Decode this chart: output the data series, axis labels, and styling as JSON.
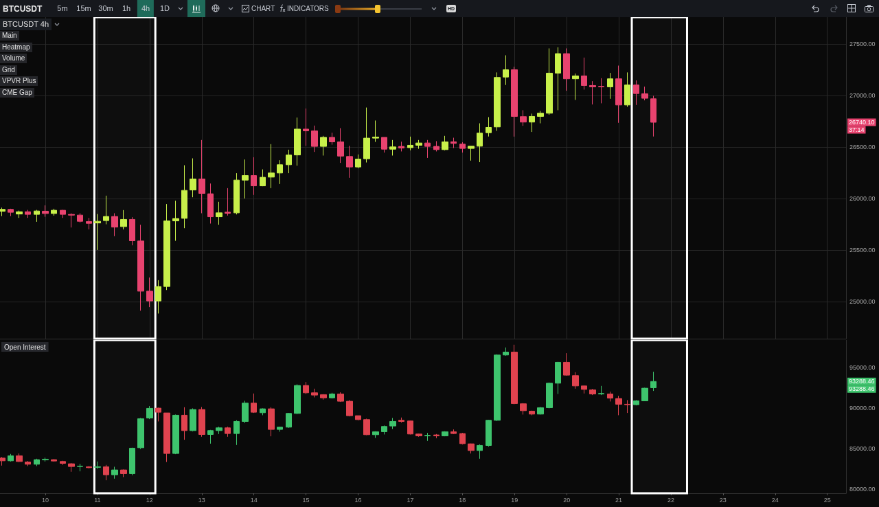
{
  "chart_data": [
    {
      "type": "candlestick",
      "title": "BTCUSDT",
      "subtitle": "BTCUSDT 4h",
      "x": [
        9.1667,
        9.3333,
        9.5,
        9.6667,
        9.8333,
        10,
        10.1667,
        10.3333,
        10.5,
        10.6667,
        10.8333,
        11,
        11.1667,
        11.3333,
        11.5,
        11.6667,
        11.8333,
        12,
        12.1667,
        12.3333,
        12.5,
        12.6667,
        12.8333,
        13,
        13.1667,
        13.3333,
        13.5,
        13.6667,
        13.8333,
        14,
        14.1667,
        14.3333,
        14.5,
        14.6667,
        14.8333,
        15,
        15.1667,
        15.3333,
        15.5,
        15.6667,
        15.8333,
        16,
        16.1667,
        16.3333,
        16.5,
        16.6667,
        16.8333,
        17,
        17.1667,
        17.3333,
        17.5,
        17.6667,
        17.8333,
        18,
        18.1667,
        18.3333,
        18.5,
        18.6667,
        18.8333,
        19,
        19.1667,
        19.3333,
        19.5,
        19.6667,
        19.8333,
        20,
        20.1667,
        20.3333,
        20.5,
        20.6667,
        20.8333,
        21,
        21.1667,
        21.3333,
        21.5,
        21.6667
      ],
      "ohlc": [
        [
          25877,
          25912,
          25830,
          25895
        ],
        [
          25895,
          25901,
          25830,
          25866
        ],
        [
          25850,
          25883,
          25812,
          25872
        ],
        [
          25872,
          25890,
          25812,
          25846
        ],
        [
          25846,
          25890,
          25774,
          25879
        ],
        [
          25877,
          25934,
          25823,
          25855
        ],
        [
          25855,
          25901,
          25834,
          25886
        ],
        [
          25886,
          25890,
          25812,
          25846
        ],
        [
          25846,
          25857,
          25719,
          25839
        ],
        [
          25839,
          25857,
          25768,
          25779
        ],
        [
          25777,
          25812,
          25701,
          25759
        ],
        [
          25763,
          25850,
          25501,
          25779
        ],
        [
          25786,
          26028,
          25750,
          25826
        ],
        [
          25826,
          25857,
          25635,
          25723
        ],
        [
          25728,
          25888,
          25701,
          25797
        ],
        [
          25797,
          25819,
          25546,
          25590
        ],
        [
          25588,
          25746,
          24912,
          25101
        ],
        [
          25101,
          25234,
          24946,
          25006
        ],
        [
          25006,
          25208,
          24884,
          25146
        ],
        [
          25146,
          25946,
          25112,
          25783
        ],
        [
          25783,
          25979,
          25590,
          25806
        ],
        [
          25808,
          26323,
          25712,
          26079
        ],
        [
          26083,
          26390,
          26012,
          26190
        ],
        [
          26190,
          26568,
          25857,
          26050
        ],
        [
          26046,
          26146,
          25757,
          25823
        ],
        [
          25823,
          25968,
          25746,
          25861
        ],
        [
          25868,
          26101,
          25835,
          25857
        ],
        [
          25861,
          26246,
          25846,
          26179
        ],
        [
          26179,
          26379,
          26001,
          26223
        ],
        [
          26223,
          26401,
          26035,
          26123
        ],
        [
          26123,
          26283,
          26119,
          26206
        ],
        [
          26208,
          26528,
          26101,
          26248
        ],
        [
          26248,
          26372,
          26141,
          26328
        ],
        [
          26328,
          26474,
          26246,
          26423
        ],
        [
          26423,
          26786,
          26319,
          26674
        ],
        [
          26674,
          26874,
          26512,
          26657
        ],
        [
          26657,
          26708,
          26452,
          26506
        ],
        [
          26506,
          26608,
          26417,
          26594
        ],
        [
          26594,
          26639,
          26523,
          26550
        ],
        [
          26550,
          26683,
          26346,
          26412
        ],
        [
          26408,
          26512,
          26201,
          26306
        ],
        [
          26306,
          26428,
          26294,
          26383
        ],
        [
          26386,
          26883,
          26350,
          26586
        ],
        [
          26586,
          26757,
          26550,
          26597
        ],
        [
          26594,
          26594,
          26446,
          26479
        ],
        [
          26479,
          26568,
          26417,
          26501
        ],
        [
          26506,
          26552,
          26457,
          26490
        ],
        [
          26494,
          26601,
          26468,
          26517
        ],
        [
          26517,
          26568,
          26483,
          26539
        ],
        [
          26539,
          26568,
          26394,
          26506
        ],
        [
          26506,
          26557,
          26457,
          26475
        ],
        [
          26475,
          26608,
          26468,
          26550
        ],
        [
          26551,
          26590,
          26490,
          26535
        ],
        [
          26528,
          26546,
          26446,
          26486
        ],
        [
          26486,
          26508,
          26368,
          26508
        ],
        [
          26508,
          26730,
          26353,
          26635
        ],
        [
          26639,
          26790,
          26602,
          26690
        ],
        [
          26695,
          27224,
          26657,
          27175
        ],
        [
          27179,
          27390,
          27102,
          27250
        ],
        [
          27250,
          27279,
          26601,
          26797
        ],
        [
          26795,
          26857,
          26706,
          26742
        ],
        [
          26742,
          26824,
          26646,
          26797
        ],
        [
          26797,
          26850,
          26730,
          26828
        ],
        [
          26828,
          27457,
          26813,
          27217
        ],
        [
          27217,
          27468,
          26857,
          27406
        ],
        [
          27406,
          27457,
          27046,
          27162
        ],
        [
          27162,
          27213,
          26957,
          27190
        ],
        [
          27190,
          27368,
          27057,
          27097
        ],
        [
          27097,
          27139,
          26913,
          27084
        ],
        [
          27088,
          27168,
          26924,
          27084
        ],
        [
          27084,
          27219,
          26968,
          27162
        ],
        [
          27162,
          27290,
          26735,
          26908
        ],
        [
          26908,
          27224,
          26890,
          27102
        ],
        [
          27102,
          27146,
          26908,
          27019
        ],
        [
          27017,
          27086,
          26953,
          26973
        ],
        [
          26968,
          26997,
          26602,
          26740.1
        ]
      ],
      "colors": [
        "#c8f04a",
        "#e8436f",
        "#c8f04a",
        "#e8436f",
        "#c8f04a",
        "#e8436f",
        "#c8f04a",
        "#e8436f",
        "#e8436f",
        "#e8436f",
        "#e8436f",
        "#c8f04a",
        "#c8f04a",
        "#e8436f",
        "#c8f04a",
        "#e8436f",
        "#e8436f",
        "#e8436f",
        "#c8f04a",
        "#c8f04a",
        "#c8f04a",
        "#c8f04a",
        "#c8f04a",
        "#e8436f",
        "#e8436f",
        "#c8f04a",
        "#e8436f",
        "#c8f04a",
        "#c8f04a",
        "#e8436f",
        "#c8f04a",
        "#c8f04a",
        "#c8f04a",
        "#c8f04a",
        "#c8f04a",
        "#e8436f",
        "#e8436f",
        "#c8f04a",
        "#e8436f",
        "#e8436f",
        "#e8436f",
        "#c8f04a",
        "#c8f04a",
        "#c8f04a",
        "#e8436f",
        "#c8f04a",
        "#e8436f",
        "#c8f04a",
        "#c8f04a",
        "#e8436f",
        "#e8436f",
        "#c8f04a",
        "#e8436f",
        "#e8436f",
        "#c8f04a",
        "#c8f04a",
        "#c8f04a",
        "#c8f04a",
        "#c8f04a",
        "#e8436f",
        "#e8436f",
        "#c8f04a",
        "#c8f04a",
        "#c8f04a",
        "#c8f04a",
        "#e8436f",
        "#c8f04a",
        "#e8436f",
        "#e8436f",
        "#e8436f",
        "#c8f04a",
        "#e8436f",
        "#c8f04a",
        "#e8436f",
        "#e8436f",
        "#e8436f"
      ],
      "xlim": [
        9.13,
        25.36
      ],
      "xticks": [
        10,
        11,
        12,
        13,
        14,
        15,
        16,
        17,
        18,
        19,
        20,
        21,
        22,
        23,
        24,
        25
      ],
      "ylim": [
        24640,
        27760
      ],
      "yticks": [
        {
          "value": 25000,
          "label": "25000.00"
        },
        {
          "value": 25500,
          "label": "25500.00"
        },
        {
          "value": 26000,
          "label": "26000.00"
        },
        {
          "value": 26500,
          "label": "26500.00"
        },
        {
          "value": 27000,
          "label": "27000.00"
        },
        {
          "value": 27500,
          "label": "27500.00"
        }
      ],
      "grid": true,
      "tick_labels": "y",
      "bands": [
        {
          "axis": "x",
          "from": 10.94,
          "to": 12.11,
          "color": "#ffffff"
        },
        {
          "axis": "x",
          "from": 21.25,
          "to": 22.31,
          "color": "#ffffff"
        }
      ],
      "annotations": [
        "5m",
        "15m",
        "30m",
        "1h",
        "4h",
        "1D",
        "CHART",
        "INDICATORS",
        "HD",
        "Main",
        "Heatmap",
        "Volume",
        "Grid",
        "VPVR Plus",
        "CME Gap",
        "26740.10",
        "37:14"
      ]
    },
    {
      "type": "candlestick",
      "title": "Open Interest",
      "x": [
        9.1667,
        9.3333,
        9.5,
        9.6667,
        9.8333,
        10,
        10.1667,
        10.3333,
        10.5,
        10.6667,
        10.8333,
        11,
        11.1667,
        11.3333,
        11.5,
        11.6667,
        11.8333,
        12,
        12.1667,
        12.3333,
        12.5,
        12.6667,
        12.8333,
        13,
        13.1667,
        13.3333,
        13.5,
        13.6667,
        13.8333,
        14,
        14.1667,
        14.3333,
        14.5,
        14.6667,
        14.8333,
        15,
        15.1667,
        15.3333,
        15.5,
        15.6667,
        15.8333,
        16,
        16.1667,
        16.3333,
        16.5,
        16.6667,
        16.8333,
        17,
        17.1667,
        17.3333,
        17.5,
        17.6667,
        17.8333,
        18,
        18.1667,
        18.3333,
        18.5,
        18.6667,
        18.8333,
        19,
        19.1667,
        19.3333,
        19.5,
        19.6667,
        19.8333,
        20,
        20.1667,
        20.3333,
        20.5,
        20.6667,
        20.8333,
        21,
        21.1667,
        21.3333,
        21.5,
        21.6667
      ],
      "ohlc": [
        [
          83842,
          83983,
          82910,
          83503
        ],
        [
          83503,
          84350,
          83418,
          84125
        ],
        [
          84125,
          84407,
          83362,
          83418
        ],
        [
          83362,
          83475,
          82853,
          83080
        ],
        [
          83080,
          83757,
          82853,
          83644
        ],
        [
          83640,
          83898,
          83418,
          83700
        ],
        [
          83644,
          83700,
          83418,
          83475
        ],
        [
          83418,
          83503,
          82995,
          83193
        ],
        [
          83136,
          83221,
          82147,
          82797
        ],
        [
          82800,
          83136,
          82203,
          82853
        ],
        [
          82769,
          82853,
          82571,
          82656
        ],
        [
          82700,
          83419,
          82515,
          82770
        ],
        [
          82769,
          82995,
          81102,
          81780
        ],
        [
          81780,
          82769,
          81300,
          82373
        ],
        [
          82373,
          82430,
          81498,
          81921
        ],
        [
          81921,
          85113,
          81723,
          85057
        ],
        [
          85113,
          88785,
          84972,
          88701
        ],
        [
          88785,
          90255,
          88645,
          89973
        ],
        [
          90001,
          90057,
          88362,
          89492
        ],
        [
          89407,
          89407,
          83362,
          84407
        ],
        [
          84407,
          89209,
          84322,
          89125
        ],
        [
          89125,
          90114,
          86102,
          87232
        ],
        [
          87232,
          89973,
          87147,
          89831
        ],
        [
          89831,
          90142,
          86469,
          86752
        ],
        [
          86752,
          87317,
          85622,
          87232
        ],
        [
          87232,
          87712,
          86808,
          87571
        ],
        [
          87571,
          87712,
          86469,
          86865
        ],
        [
          86865,
          88503,
          85452,
          88362
        ],
        [
          88362,
          90905,
          88164,
          90622
        ],
        [
          90622,
          91809,
          89407,
          89492
        ],
        [
          89436,
          89973,
          89125,
          89915
        ],
        [
          89915,
          90114,
          86526,
          87373
        ],
        [
          87373,
          87712,
          87091,
          87656
        ],
        [
          87656,
          89407,
          87571,
          89351
        ],
        [
          89351,
          92939,
          89266,
          92798
        ],
        [
          92798,
          93221,
          91752,
          91894
        ],
        [
          91894,
          92402,
          91328,
          91611
        ],
        [
          91668,
          91724,
          91046,
          91272
        ],
        [
          91272,
          91894,
          91187,
          91752
        ],
        [
          91752,
          91950,
          90764,
          90848
        ],
        [
          90848,
          90990,
          88983,
          89068
        ],
        [
          89068,
          89068,
          88503,
          88588
        ],
        [
          88588,
          88701,
          86667,
          86724
        ],
        [
          86724,
          87147,
          86328,
          87091
        ],
        [
          87091,
          87853,
          86752,
          87741
        ],
        [
          87797,
          88786,
          87430,
          88362
        ],
        [
          88503,
          88842,
          88221,
          88362
        ],
        [
          88418,
          88447,
          86752,
          86808
        ],
        [
          86808,
          86865,
          86469,
          86582
        ],
        [
          86582,
          86950,
          85961,
          86639
        ],
        [
          86695,
          86808,
          86300,
          86582
        ],
        [
          86582,
          87147,
          86526,
          87091
        ],
        [
          87091,
          87373,
          86808,
          86865
        ],
        [
          86865,
          86950,
          85537,
          85622
        ],
        [
          85594,
          85622,
          84407,
          84775
        ],
        [
          84775,
          85537,
          83757,
          85396
        ],
        [
          85396,
          88560,
          85255,
          88503
        ],
        [
          88503,
          96640,
          88419,
          96555
        ],
        [
          96555,
          97487,
          96470,
          96922
        ],
        [
          96922,
          97826,
          90481,
          90566
        ],
        [
          90538,
          90622,
          89209,
          89690
        ],
        [
          89633,
          89690,
          89125,
          89266
        ],
        [
          89266,
          90142,
          89209,
          90057
        ],
        [
          90057,
          93165,
          89972,
          93080
        ],
        [
          93080,
          95707,
          91752,
          95650
        ],
        [
          95650,
          96781,
          94012,
          94069
        ],
        [
          94012,
          94436,
          92402,
          92741
        ],
        [
          92741,
          92798,
          91809,
          92317
        ],
        [
          92261,
          92374,
          91611,
          91752
        ],
        [
          91752,
          92741,
          91611,
          91809
        ],
        [
          91752,
          92035,
          90820,
          91244
        ],
        [
          91187,
          91526,
          89125,
          90481
        ],
        [
          90481,
          90990,
          89407,
          90425
        ],
        [
          90425,
          90990,
          90340,
          90905
        ],
        [
          90905,
          92515,
          90905,
          92459
        ],
        [
          92515,
          94492,
          92120,
          93288.46
        ]
      ],
      "colors": [
        "#e0434f",
        "#3ec46d",
        "#e0434f",
        "#e0434f",
        "#3ec46d",
        "#3ec46d",
        "#e0434f",
        "#e0434f",
        "#e0434f",
        "#3ec46d",
        "#e0434f",
        "#3ec46d",
        "#e0434f",
        "#3ec46d",
        "#e0434f",
        "#3ec46d",
        "#3ec46d",
        "#3ec46d",
        "#e0434f",
        "#e0434f",
        "#3ec46d",
        "#e0434f",
        "#3ec46d",
        "#e0434f",
        "#3ec46d",
        "#3ec46d",
        "#e0434f",
        "#3ec46d",
        "#3ec46d",
        "#e0434f",
        "#3ec46d",
        "#e0434f",
        "#3ec46d",
        "#3ec46d",
        "#3ec46d",
        "#e0434f",
        "#e0434f",
        "#e0434f",
        "#3ec46d",
        "#e0434f",
        "#e0434f",
        "#e0434f",
        "#e0434f",
        "#3ec46d",
        "#3ec46d",
        "#3ec46d",
        "#e0434f",
        "#e0434f",
        "#e0434f",
        "#3ec46d",
        "#e0434f",
        "#3ec46d",
        "#e0434f",
        "#e0434f",
        "#e0434f",
        "#3ec46d",
        "#3ec46d",
        "#3ec46d",
        "#3ec46d",
        "#e0434f",
        "#e0434f",
        "#e0434f",
        "#3ec46d",
        "#3ec46d",
        "#3ec46d",
        "#e0434f",
        "#e0434f",
        "#e0434f",
        "#e0434f",
        "#3ec46d",
        "#e0434f",
        "#e0434f",
        "#e0434f",
        "#3ec46d",
        "#3ec46d",
        "#3ec46d"
      ],
      "xlim": [
        9.13,
        25.36
      ],
      "xticks": [
        10,
        11,
        12,
        13,
        14,
        15,
        16,
        17,
        18,
        19,
        20,
        21,
        22,
        23,
        24,
        25
      ],
      "ylim": [
        79500,
        98400
      ],
      "yticks": [
        {
          "value": 80000,
          "label": "80000.00"
        },
        {
          "value": 85000,
          "label": "85000.00"
        },
        {
          "value": 90000,
          "label": "90000.00"
        },
        {
          "value": 95000,
          "label": "95000.00"
        }
      ],
      "bands": [
        {
          "axis": "x",
          "from": 10.94,
          "to": 12.11,
          "color": "#ffffff"
        },
        {
          "axis": "x",
          "from": 21.25,
          "to": 22.31,
          "color": "#ffffff"
        }
      ],
      "annotations": [
        "93288.46",
        "93288.46"
      ]
    }
  ]
}
